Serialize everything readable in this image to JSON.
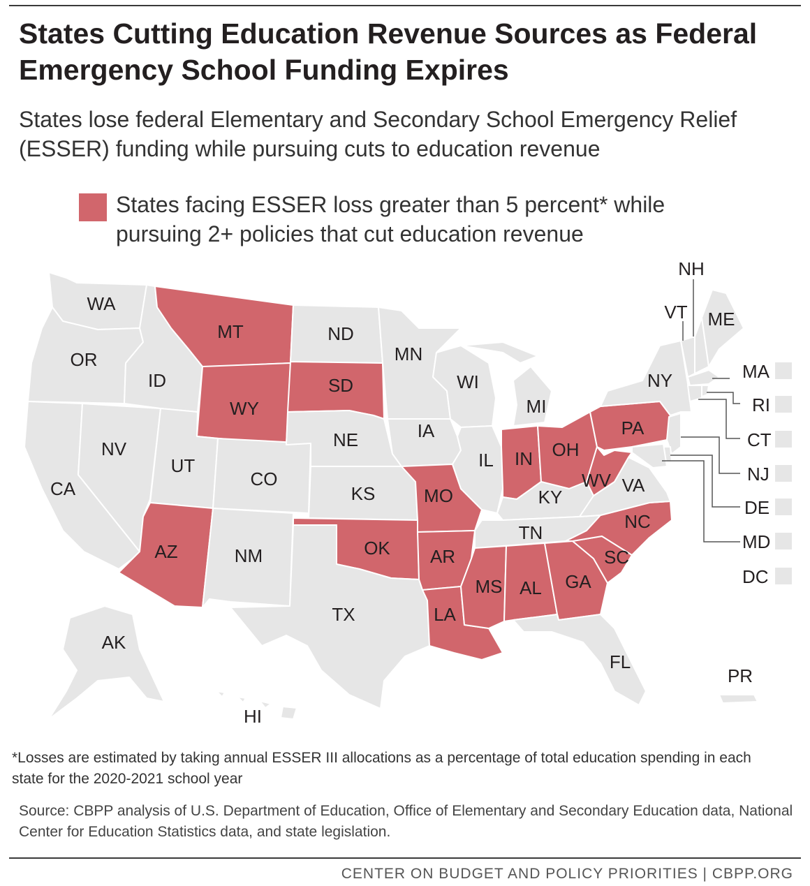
{
  "title": "States Cutting Education Revenue Sources as Federal Emergency School Funding Expires",
  "subtitle": "States lose federal Elementary and Secondary School Emergency Relief (ESSER) funding while pursuing cuts to education revenue",
  "legend": {
    "label": "States facing ESSER loss greater than 5 percent* while pursuing 2+ policies that cut education revenue",
    "color": "#d1666c"
  },
  "colors": {
    "highlight": "#d1666c",
    "other": "#e6e6e6"
  },
  "states": {
    "WA": {
      "label": "WA",
      "highlighted": false
    },
    "OR": {
      "label": "OR",
      "highlighted": false
    },
    "CA": {
      "label": "CA",
      "highlighted": false
    },
    "NV": {
      "label": "NV",
      "highlighted": false
    },
    "ID": {
      "label": "ID",
      "highlighted": false
    },
    "MT": {
      "label": "MT",
      "highlighted": true
    },
    "WY": {
      "label": "WY",
      "highlighted": true
    },
    "UT": {
      "label": "UT",
      "highlighted": false
    },
    "AZ": {
      "label": "AZ",
      "highlighted": true
    },
    "CO": {
      "label": "CO",
      "highlighted": false
    },
    "NM": {
      "label": "NM",
      "highlighted": false
    },
    "ND": {
      "label": "ND",
      "highlighted": false
    },
    "SD": {
      "label": "SD",
      "highlighted": true
    },
    "NE": {
      "label": "NE",
      "highlighted": false
    },
    "KS": {
      "label": "KS",
      "highlighted": false
    },
    "OK": {
      "label": "OK",
      "highlighted": true
    },
    "TX": {
      "label": "TX",
      "highlighted": false
    },
    "MN": {
      "label": "MN",
      "highlighted": false
    },
    "IA": {
      "label": "IA",
      "highlighted": false
    },
    "MO": {
      "label": "MO",
      "highlighted": true
    },
    "AR": {
      "label": "AR",
      "highlighted": true
    },
    "LA": {
      "label": "LA",
      "highlighted": true
    },
    "WI": {
      "label": "WI",
      "highlighted": false
    },
    "IL": {
      "label": "IL",
      "highlighted": false
    },
    "MI": {
      "label": "MI",
      "highlighted": false
    },
    "IN": {
      "label": "IN",
      "highlighted": true
    },
    "OH": {
      "label": "OH",
      "highlighted": true
    },
    "KY": {
      "label": "KY",
      "highlighted": false
    },
    "TN": {
      "label": "TN",
      "highlighted": false
    },
    "MS": {
      "label": "MS",
      "highlighted": true
    },
    "AL": {
      "label": "AL",
      "highlighted": true
    },
    "GA": {
      "label": "GA",
      "highlighted": true
    },
    "FL": {
      "label": "FL",
      "highlighted": false
    },
    "SC": {
      "label": "SC",
      "highlighted": true
    },
    "NC": {
      "label": "NC",
      "highlighted": true
    },
    "VA": {
      "label": "VA",
      "highlighted": false
    },
    "WV": {
      "label": "WV",
      "highlighted": true
    },
    "PA": {
      "label": "PA",
      "highlighted": true
    },
    "NY": {
      "label": "NY",
      "highlighted": false
    },
    "VT": {
      "label": "VT",
      "highlighted": false
    },
    "NH": {
      "label": "NH",
      "highlighted": false
    },
    "ME": {
      "label": "ME",
      "highlighted": false
    },
    "AK": {
      "label": "AK",
      "highlighted": false
    },
    "HI": {
      "label": "HI",
      "highlighted": false
    },
    "PR": {
      "label": "PR",
      "highlighted": false
    }
  },
  "small_states": [
    {
      "code": "MA",
      "label": "MA",
      "highlighted": false
    },
    {
      "code": "RI",
      "label": "RI",
      "highlighted": false
    },
    {
      "code": "CT",
      "label": "CT",
      "highlighted": false
    },
    {
      "code": "NJ",
      "label": "NJ",
      "highlighted": false
    },
    {
      "code": "DE",
      "label": "DE",
      "highlighted": false
    },
    {
      "code": "MD",
      "label": "MD",
      "highlighted": false
    },
    {
      "code": "DC",
      "label": "DC",
      "highlighted": false
    }
  ],
  "footnote": "*Losses are estimated by taking annual ESSER III allocations as a percentage of total education spending in each state for the 2020-2021 school year",
  "source": "Source: CBPP analysis of U.S. Department of Education, Office of Elementary and Secondary Education data, National Center for Education Statistics data, and state legislation.",
  "credit": "CENTER ON BUDGET AND POLICY PRIORITIES | CBPP.ORG"
}
